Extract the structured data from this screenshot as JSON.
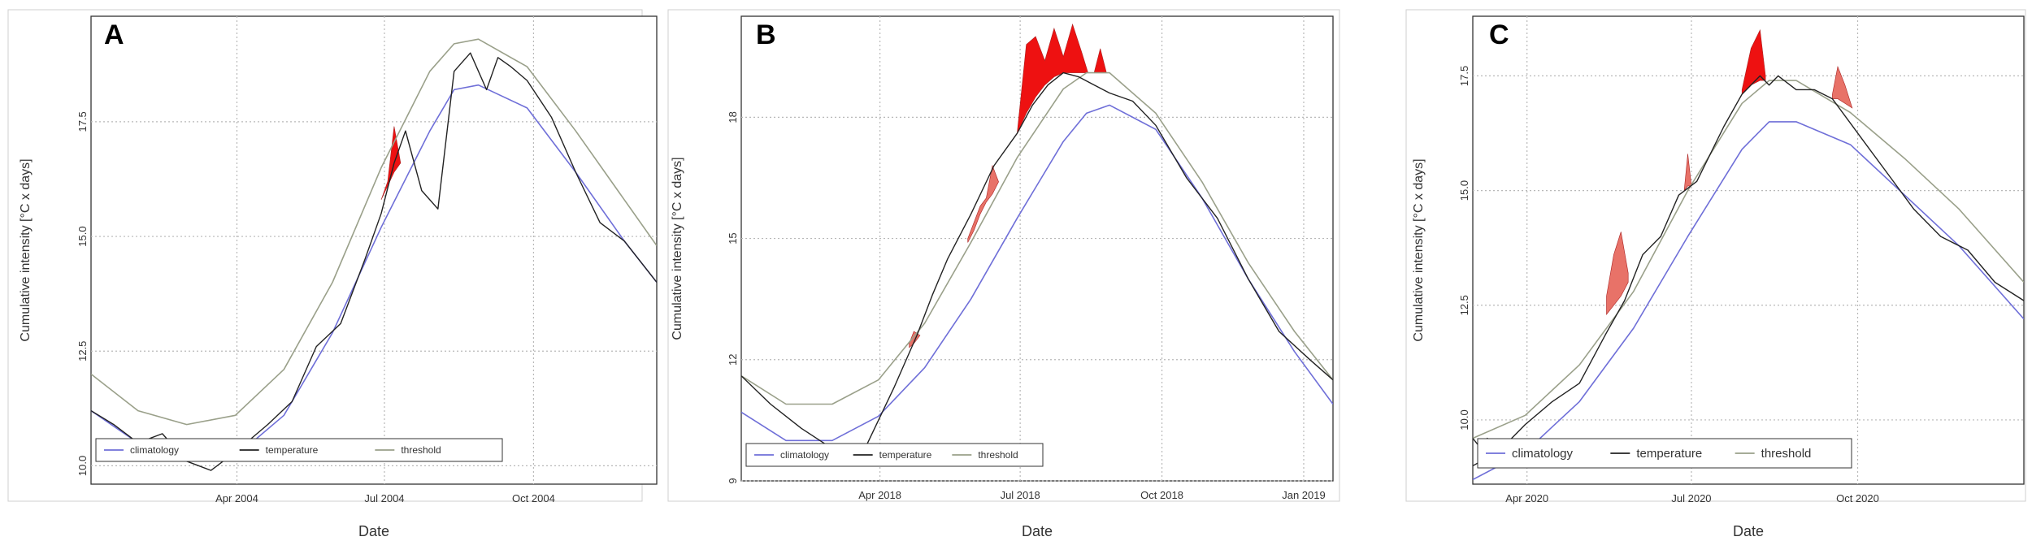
{
  "chart_data": [
    {
      "panel_label": "A",
      "type": "line",
      "xlabel": "Date",
      "ylabel": "Cumulative intensity [°C x days]",
      "x_unit": "day of year",
      "xlim": [
        1,
        350
      ],
      "ylim": [
        9.6,
        19.8
      ],
      "x_ticks": [
        {
          "label": "Apr 2004",
          "value": 91
        },
        {
          "label": "Jul 2004",
          "value": 182
        },
        {
          "label": "Oct 2004",
          "value": 274
        }
      ],
      "y_ticks": [
        {
          "label": "10.0",
          "value": 10.0
        },
        {
          "label": "12.5",
          "value": 12.5
        },
        {
          "label": "15.0",
          "value": 15.0
        },
        {
          "label": "17.5",
          "value": 17.5
        }
      ],
      "legend": {
        "position": "bottom-left",
        "entries": [
          "climatology",
          "temperature",
          "threshold"
        ]
      },
      "series": [
        {
          "name": "climatology",
          "color": "#6f6fd8",
          "x": [
            1,
            30,
            60,
            90,
            120,
            150,
            180,
            210,
            225,
            240,
            270,
            300,
            330,
            350
          ],
          "values": [
            11.2,
            10.5,
            10.1,
            10.2,
            11.1,
            12.9,
            15.2,
            17.3,
            18.2,
            18.3,
            17.8,
            16.4,
            14.9,
            14.0
          ]
        },
        {
          "name": "threshold",
          "color": "#9aa08a",
          "x": [
            1,
            30,
            60,
            90,
            120,
            150,
            180,
            210,
            225,
            240,
            270,
            300,
            330,
            350
          ],
          "values": [
            12.0,
            11.2,
            10.9,
            11.1,
            12.1,
            14.0,
            16.5,
            18.6,
            19.2,
            19.3,
            18.7,
            17.3,
            15.8,
            14.8
          ]
        },
        {
          "name": "temperature",
          "color": "#222222",
          "x": [
            1,
            15,
            30,
            45,
            60,
            75,
            90,
            110,
            125,
            140,
            155,
            170,
            180,
            188,
            195,
            205,
            215,
            225,
            235,
            245,
            252,
            260,
            270,
            285,
            300,
            315,
            330,
            350
          ],
          "values": [
            11.2,
            10.9,
            10.5,
            10.7,
            10.1,
            9.9,
            10.3,
            10.9,
            11.4,
            12.6,
            13.1,
            14.5,
            15.5,
            16.6,
            17.3,
            16.0,
            15.6,
            18.6,
            19.0,
            18.2,
            18.9,
            18.7,
            18.4,
            17.6,
            16.4,
            15.3,
            14.9,
            14.0
          ]
        }
      ],
      "events": [
        {
          "x": [
            180,
            184,
            188,
            192
          ],
          "upper": [
            15.8,
            16.2,
            17.4,
            16.6
          ],
          "lower": [
            15.8,
            16.1,
            16.4,
            16.6
          ],
          "color": "#ee1111"
        }
      ]
    },
    {
      "panel_label": "B",
      "type": "line",
      "xlabel": "Date",
      "ylabel": "Cumulative intensity [°C x days]",
      "x_unit": "day since Jan 1, 2018",
      "xlim": [
        1,
        385
      ],
      "ylim": [
        9,
        20.5
      ],
      "x_ticks": [
        {
          "label": "Apr 2018",
          "value": 91
        },
        {
          "label": "Jul 2018",
          "value": 182
        },
        {
          "label": "Oct 2018",
          "value": 274
        },
        {
          "label": "Jan 2019",
          "value": 366
        }
      ],
      "y_ticks": [
        {
          "label": "9",
          "value": 9
        },
        {
          "label": "12",
          "value": 12
        },
        {
          "label": "15",
          "value": 15
        },
        {
          "label": "18",
          "value": 18
        }
      ],
      "legend": {
        "position": "bottom-left",
        "entries": [
          "climatology",
          "temperature",
          "threshold"
        ]
      },
      "series": [
        {
          "name": "climatology",
          "color": "#6f6fd8",
          "x": [
            1,
            30,
            60,
            90,
            120,
            150,
            180,
            210,
            225,
            240,
            270,
            300,
            330,
            360,
            385
          ],
          "values": [
            10.7,
            10.0,
            10.0,
            10.6,
            11.8,
            13.5,
            15.5,
            17.4,
            18.1,
            18.3,
            17.7,
            16.0,
            14.0,
            12.2,
            10.9
          ]
        },
        {
          "name": "threshold",
          "color": "#9aa08a",
          "x": [
            1,
            30,
            60,
            90,
            120,
            150,
            180,
            210,
            225,
            240,
            270,
            300,
            330,
            360,
            385
          ],
          "values": [
            11.6,
            10.9,
            10.9,
            11.5,
            12.9,
            14.9,
            17.0,
            18.7,
            19.1,
            19.1,
            18.1,
            16.4,
            14.4,
            12.7,
            11.5
          ]
        },
        {
          "name": "temperature",
          "color": "#222222",
          "x": [
            1,
            20,
            40,
            60,
            80,
            100,
            115,
            125,
            135,
            150,
            165,
            180,
            190,
            200,
            210,
            220,
            230,
            240,
            255,
            270,
            290,
            310,
            330,
            350,
            370,
            385
          ],
          "values": [
            11.6,
            10.9,
            10.3,
            9.8,
            9.7,
            11.3,
            12.6,
            13.6,
            14.5,
            15.6,
            16.8,
            17.6,
            18.3,
            18.8,
            19.1,
            19.0,
            18.8,
            18.6,
            18.4,
            17.8,
            16.5,
            15.5,
            14.0,
            12.7,
            12.0,
            11.5
          ]
        }
      ],
      "events": [
        {
          "x": [
            110,
            113,
            117
          ],
          "upper": [
            12.4,
            12.7,
            12.6
          ],
          "lower": [
            12.3,
            12.4,
            12.6
          ],
          "color": "#e87268"
        },
        {
          "x": [
            148,
            152,
            156,
            160,
            164,
            168
          ],
          "upper": [
            15.0,
            15.4,
            15.8,
            16.0,
            16.8,
            16.4
          ],
          "lower": [
            14.9,
            15.2,
            15.6,
            15.9,
            16.1,
            16.4
          ],
          "color": "#e87268"
        },
        {
          "x": [
            180,
            186,
            192,
            198,
            204,
            210,
            216,
            222,
            226
          ],
          "upper": [
            17.6,
            19.8,
            20.0,
            19.4,
            20.2,
            19.5,
            20.3,
            19.6,
            19.1
          ],
          "lower": [
            17.6,
            18.1,
            18.5,
            18.8,
            19.0,
            19.1,
            19.1,
            19.1,
            19.1
          ],
          "color": "#ee1111"
        },
        {
          "x": [
            230,
            234,
            238
          ],
          "upper": [
            19.1,
            19.7,
            19.1
          ],
          "lower": [
            19.1,
            19.1,
            19.1
          ],
          "color": "#ee1111"
        }
      ]
    },
    {
      "panel_label": "C",
      "type": "line",
      "xlabel": "Date",
      "ylabel": "Cumulative intensity [°C x days]",
      "x_unit": "day since Mar 1, 2020",
      "xlim": [
        1,
        306
      ],
      "ylim": [
        8.6,
        18.8
      ],
      "x_ticks": [
        {
          "label": "Apr 2020",
          "value": 31
        },
        {
          "label": "Jul 2020",
          "value": 122
        },
        {
          "label": "Oct 2020",
          "value": 214
        }
      ],
      "y_ticks": [
        {
          "label": "10.0",
          "value": 10.0
        },
        {
          "label": "12.5",
          "value": 12.5
        },
        {
          "label": "15.0",
          "value": 15.0
        },
        {
          "label": "17.5",
          "value": 17.5
        }
      ],
      "legend": {
        "position": "bottom-left",
        "entries": [
          "climatology",
          "temperature",
          "threshold"
        ]
      },
      "series": [
        {
          "name": "climatology",
          "color": "#6f6fd8",
          "x": [
            1,
            30,
            60,
            90,
            120,
            150,
            165,
            180,
            210,
            240,
            270,
            306
          ],
          "values": [
            8.7,
            9.3,
            10.4,
            12.0,
            14.0,
            15.9,
            16.5,
            16.5,
            16.0,
            14.9,
            13.8,
            12.2
          ]
        },
        {
          "name": "threshold",
          "color": "#9aa08a",
          "x": [
            1,
            30,
            60,
            90,
            120,
            150,
            165,
            180,
            210,
            240,
            270,
            306
          ],
          "values": [
            9.6,
            10.1,
            11.2,
            12.8,
            15.0,
            16.9,
            17.4,
            17.4,
            16.7,
            15.7,
            14.6,
            13.0
          ]
        },
        {
          "name": "temperature",
          "color": "#222222",
          "x": [
            1,
            15,
            30,
            45,
            60,
            75,
            85,
            95,
            105,
            115,
            125,
            140,
            150,
            160,
            165,
            170,
            180,
            190,
            200,
            215,
            230,
            245,
            260,
            275,
            290,
            306
          ],
          "values": [
            9.0,
            9.3,
            9.9,
            10.4,
            10.8,
            11.9,
            12.6,
            13.6,
            14.0,
            14.9,
            15.2,
            16.4,
            17.1,
            17.5,
            17.3,
            17.5,
            17.2,
            17.2,
            17.0,
            16.2,
            15.4,
            14.6,
            14.0,
            13.7,
            13.0,
            12.6
          ]
        },
        {
          "name": "temperature-early",
          "color": "#222222",
          "x": [
            1,
            5,
            9,
            13
          ],
          "values": [
            9.6,
            9.4,
            9.6,
            9.3
          ],
          "hidden_in_legend": true
        }
      ],
      "events": [
        {
          "x": [
            75,
            79,
            83,
            87
          ],
          "upper": [
            12.7,
            13.6,
            14.1,
            13.2
          ],
          "lower": [
            12.3,
            12.5,
            12.7,
            13.0
          ],
          "color": "#e87268"
        },
        {
          "x": [
            118,
            120,
            122
          ],
          "upper": [
            15.0,
            15.8,
            15.1
          ],
          "lower": [
            15.0,
            15.1,
            15.1
          ],
          "color": "#e87268"
        },
        {
          "x": [
            150,
            155,
            160,
            163
          ],
          "upper": [
            17.2,
            18.1,
            18.5,
            17.5
          ],
          "lower": [
            17.1,
            17.3,
            17.4,
            17.4
          ],
          "color": "#ee1111"
        },
        {
          "x": [
            200,
            203,
            207,
            211
          ],
          "upper": [
            17.1,
            17.7,
            17.3,
            16.8
          ],
          "lower": [
            17.0,
            17.0,
            16.9,
            16.8
          ],
          "color": "#e87268"
        }
      ]
    }
  ]
}
